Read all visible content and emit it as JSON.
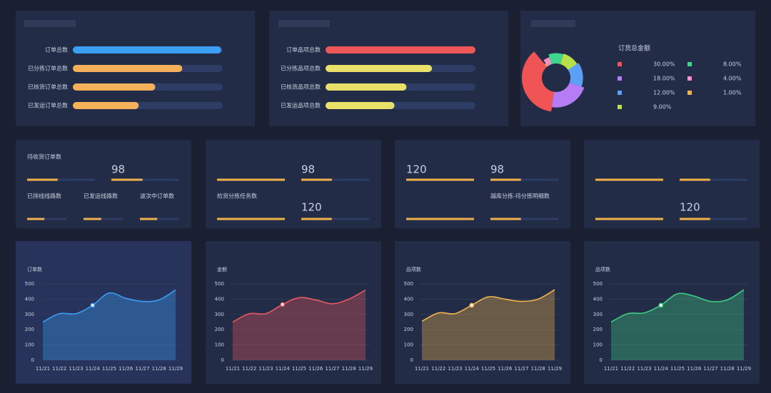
{
  "bar_panels": [
    {
      "rows": [
        {
          "label": "订单总数",
          "progress": 99,
          "color": "#3a9ff5"
        },
        {
          "label": "已分拣订单总数",
          "progress": 73,
          "color": "#f4b15a"
        },
        {
          "label": "已核货订单总数",
          "progress": 55,
          "color": "#f4b15a"
        },
        {
          "label": "已发运订单总数",
          "progress": 44,
          "color": "#f4b15a"
        }
      ]
    },
    {
      "rows": [
        {
          "label": "订单品项总数",
          "progress": 100,
          "color": "#ee5757"
        },
        {
          "label": "已分拣品项总数",
          "progress": 71,
          "color": "#e9e06a"
        },
        {
          "label": "已核货品项总数",
          "progress": 54,
          "color": "#e9e06a"
        },
        {
          "label": "已发运品项总数",
          "progress": 46,
          "color": "#e9e06a"
        }
      ]
    }
  ],
  "stat_panels": [
    {
      "rows": [
        [
          {
            "label": "待收货订单数",
            "progress": 45
          },
          {
            "value": 98,
            "progress": 46
          }
        ],
        [
          {
            "label": "已排线线路数",
            "progress": 44
          },
          {
            "label": "已发运线路数",
            "progress": 45
          },
          {
            "label": "波次中订单数",
            "progress": 44
          }
        ]
      ]
    },
    {
      "rows": [
        [
          {
            "progress": 100
          },
          {
            "value": 98,
            "progress": 45
          }
        ],
        [
          {
            "label": "检货分拣任务数",
            "progress": 100
          },
          {
            "value": 120,
            "progress": 45
          }
        ]
      ]
    },
    {
      "rows": [
        [
          {
            "value": 120,
            "progress": 100
          },
          {
            "value": 98,
            "progress": 45
          }
        ],
        [
          {
            "progress": 100
          },
          {
            "label": "越库分拣-待分拣明细数",
            "progress": 45
          }
        ]
      ]
    },
    {
      "rows": [
        [
          {
            "progress": 100
          },
          {
            "progress": 45
          }
        ],
        [
          {
            "progress": 100
          },
          {
            "value": 120,
            "progress": 45
          }
        ]
      ]
    }
  ],
  "chart_data": [
    {
      "type": "rose",
      "title": "订货总金额",
      "values": [
        30,
        18,
        12,
        9,
        8,
        4,
        1
      ],
      "value_labels": [
        "30.00%",
        "18.00%",
        "12.00%",
        "9.00%",
        "8.00%",
        "4.00%",
        "1.00%"
      ],
      "colors": [
        "#f05454",
        "#b57cf5",
        "#5aa0f7",
        "#b8e04a",
        "#3dd68c",
        "#f78fc7",
        "#f5b24a"
      ]
    },
    {
      "type": "line",
      "x": [
        "11/21",
        "11/22",
        "11/23",
        "11/24",
        "11/25",
        "11/26",
        "11/27",
        "11/28",
        "11/29"
      ],
      "series": [
        {
          "name": "订单数",
          "color": "#3a9ff5",
          "values": [
            250,
            305,
            305,
            360,
            440,
            405,
            385,
            395,
            460
          ]
        }
      ],
      "ylim": [
        0,
        500
      ],
      "yticks": [
        0,
        100,
        200,
        300,
        400,
        500
      ],
      "grid": true
    },
    {
      "type": "line",
      "x": [
        "11/21",
        "11/22",
        "11/23",
        "11/24",
        "11/25",
        "11/26",
        "11/27",
        "11/28",
        "11/29"
      ],
      "series": [
        {
          "name": "金额",
          "color": "#e85a5f",
          "values": [
            250,
            305,
            305,
            365,
            410,
            395,
            370,
            400,
            460
          ]
        }
      ],
      "ylim": [
        0,
        500
      ],
      "yticks": [
        0,
        100,
        200,
        300,
        400,
        500
      ],
      "grid": true
    },
    {
      "type": "line",
      "x": [
        "11/21",
        "11/22",
        "11/23",
        "11/24",
        "11/25",
        "11/26",
        "11/27",
        "11/28",
        "11/29"
      ],
      "series": [
        {
          "name": "品项数",
          "color": "#f0b44c",
          "values": [
            255,
            310,
            305,
            360,
            415,
            400,
            385,
            400,
            462
          ]
        }
      ],
      "ylim": [
        0,
        500
      ],
      "yticks": [
        0,
        100,
        200,
        300,
        400,
        500
      ],
      "grid": true
    },
    {
      "type": "line",
      "x": [
        "11/21",
        "11/22",
        "11/23",
        "11/24",
        "11/25",
        "11/26",
        "11/27",
        "11/28",
        "11/29"
      ],
      "series": [
        {
          "name": "品项数",
          "color": "#3ecf83",
          "values": [
            250,
            305,
            310,
            360,
            435,
            420,
            385,
            395,
            462
          ]
        }
      ],
      "ylim": [
        0,
        500
      ],
      "yticks": [
        0,
        100,
        200,
        300,
        400,
        500
      ],
      "grid": true
    }
  ]
}
